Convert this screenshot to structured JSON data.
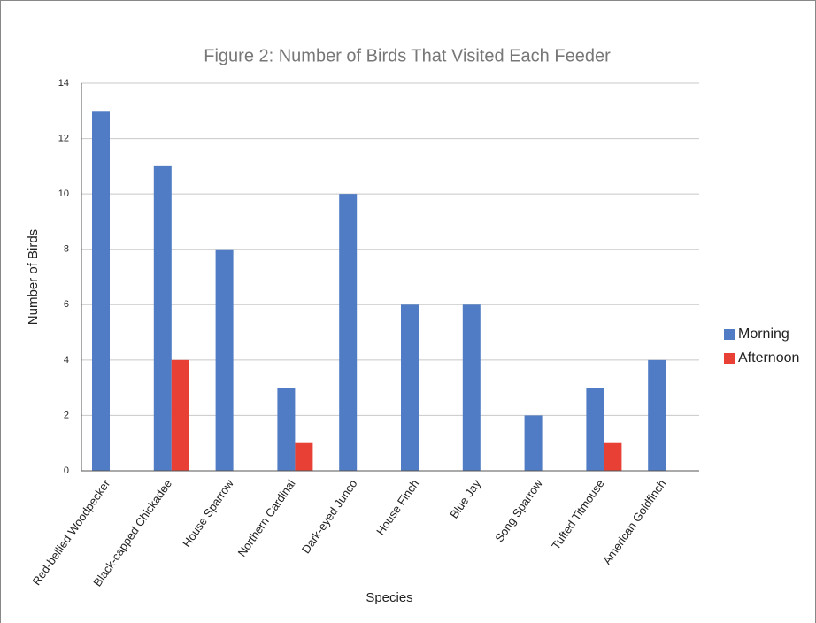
{
  "chart_data": {
    "type": "bar",
    "title": "Figure 2: Number of Birds That Visited Each Feeder",
    "x_label": "Species",
    "y_label": "Number of Birds",
    "categories": [
      "Red-bellied Woodpecker",
      "Black-capped Chickadee",
      "House Sparrow",
      "Northern Cardinal",
      "Dark-eyed Junco",
      "House Finch",
      "Blue Jay",
      "Song Sparrow",
      "Tufted Titmouse",
      "American Goldfinch"
    ],
    "series": [
      {
        "name": "Morning",
        "color": "#4f7cc4",
        "values": [
          13,
          11,
          8,
          3,
          10,
          6,
          6,
          2,
          3,
          4
        ]
      },
      {
        "name": "Afternoon",
        "color": "#e84035",
        "values": [
          0,
          4,
          0,
          1,
          0,
          0,
          0,
          0,
          1,
          0
        ]
      }
    ],
    "ylim": [
      0,
      14
    ],
    "yticks": [
      0,
      2,
      4,
      6,
      8,
      10,
      12,
      14
    ],
    "grid": true,
    "legend": "right"
  }
}
